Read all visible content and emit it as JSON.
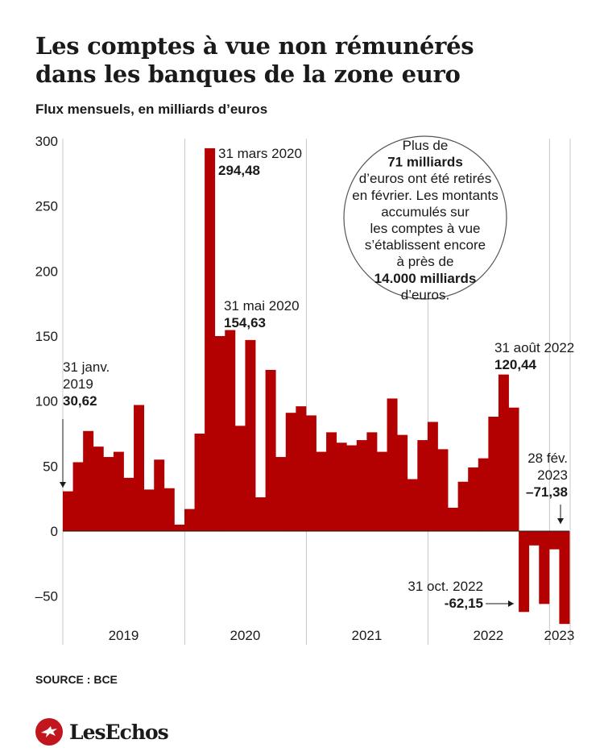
{
  "title_line1": "Les comptes à vue non rémunérés",
  "title_line2": "dans les banques de la zone euro",
  "subtitle": "Flux mensuels, en milliards d’euros",
  "source": "SOURCE : BCE",
  "logo": {
    "text": "LesEchos",
    "icon": "echos-bird-logo",
    "color": "#c2161e"
  },
  "chart_data": {
    "type": "bar",
    "title": "Les comptes à vue non rémunérés dans les banques de la zone euro",
    "ylabel": "Flux mensuels, en milliards d’euros",
    "ylim": [
      -75,
      300
    ],
    "yticks": [
      300,
      250,
      200,
      150,
      100,
      50,
      0,
      -50
    ],
    "ytick_labels": [
      "300",
      "250",
      "200",
      "150",
      "100",
      "50",
      "0",
      "–50"
    ],
    "grid": "vertical year separators",
    "bar_color": "#b30000",
    "start_month": "2019-01",
    "values": [
      30.62,
      53,
      77,
      65,
      57,
      61,
      41,
      97,
      32,
      55,
      33,
      5,
      17,
      75,
      294.48,
      150,
      154.63,
      81,
      147,
      26,
      124,
      57,
      91,
      96,
      89,
      61,
      76,
      68,
      66,
      70,
      76,
      61,
      102,
      74,
      40,
      70,
      84,
      63,
      18,
      38,
      49,
      56,
      88,
      120.44,
      95,
      -62.15,
      -11,
      -56,
      -14,
      -71.38
    ],
    "year_labels": [
      {
        "label": "2019",
        "start": 0,
        "end": 12
      },
      {
        "label": "2020",
        "start": 12,
        "end": 24
      },
      {
        "label": "2021",
        "start": 24,
        "end": 36
      },
      {
        "label": "2022",
        "start": 36,
        "end": 48
      },
      {
        "label": "2023",
        "start": 48,
        "end": 50
      }
    ],
    "annotations": [
      {
        "index": 0,
        "lines": [
          "31 janv.",
          "2019"
        ],
        "value_label": "30,62"
      },
      {
        "index": 14,
        "lines": [
          "31 mars 2020"
        ],
        "value_label": "294,48"
      },
      {
        "index": 16,
        "lines": [
          "31 mai 2020"
        ],
        "value_label": "154,63"
      },
      {
        "index": 43,
        "lines": [
          "31 août 2022"
        ],
        "value_label": "120,44"
      },
      {
        "index": 45,
        "lines": [
          "31 oct. 2022"
        ],
        "value_label": "-62,15"
      },
      {
        "index": 49,
        "lines": [
          "28 fév.",
          "2023"
        ],
        "value_label": "–71,38"
      }
    ],
    "callout": {
      "lines": [
        {
          "text": "Plus de",
          "bold": false
        },
        {
          "text": "71 milliards",
          "bold": true
        },
        {
          "text": "d’euros ont été retirés",
          "bold": false
        },
        {
          "text": "en février. Les montants",
          "bold": false
        },
        {
          "text": "accumulés sur",
          "bold": false
        },
        {
          "text": "les comptes à vue",
          "bold": false
        },
        {
          "text": "s’établissent encore",
          "bold": false
        },
        {
          "text": "à près de",
          "bold": false
        },
        {
          "text": "14.000 milliards",
          "bold": true
        },
        {
          "text": "d’euros.",
          "bold": false
        }
      ]
    }
  }
}
